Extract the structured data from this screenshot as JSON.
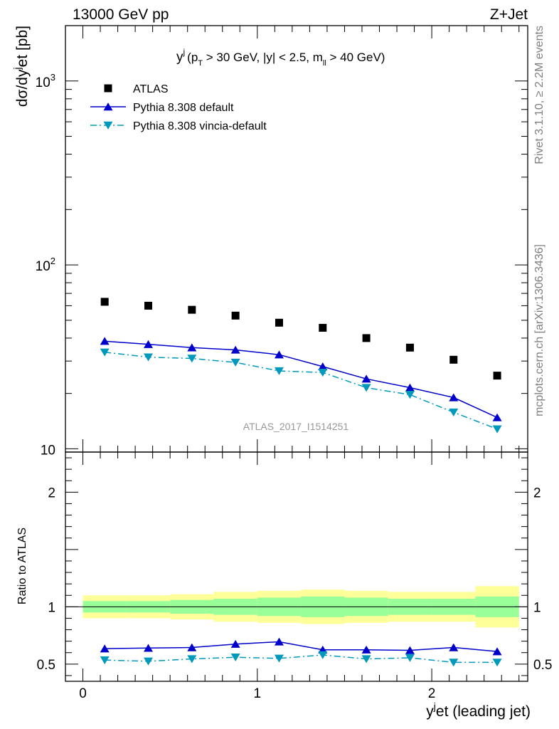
{
  "header": {
    "left": "13000 GeV pp",
    "right": "Z+Jet"
  },
  "cut_label": {
    "main": "y",
    "sup": "j",
    "p1": "(p",
    "sub_t": "T",
    "p2": " > 30 GeV, |y| < 2.5, m",
    "sub_ll": "ll",
    "p3": " > 40 GeV)"
  },
  "side_labels": {
    "top": "Rivet 3.1.10, ≥ 2.2M events",
    "bottom": "mcplots.cern.ch [arXiv:1306.3436]"
  },
  "watermark": "ATLAS_2017_I1514251",
  "colors": {
    "data": "#000000",
    "default": "#0000cc",
    "vincia": "#0099bb",
    "band_inner": "#99ff99",
    "band_outer": "#ffff99"
  },
  "chart_data": [
    {
      "type": "scatter",
      "panel": "main",
      "ylabel": {
        "a": "dσ/dy",
        "sup": "j",
        "b": "et [pb]"
      },
      "yscale": "log",
      "ylim": [
        9.6,
        2000
      ],
      "xlim": [
        -0.1,
        2.55
      ],
      "y_ticks": [
        {
          "label": "10",
          "value": 10
        },
        {
          "label": "10",
          "sup": "2",
          "value": 100
        },
        {
          "label": "10",
          "sup": "3",
          "value": 1000
        }
      ],
      "legend_position": "top-left",
      "x": [
        0.125,
        0.375,
        0.625,
        0.875,
        1.125,
        1.375,
        1.625,
        1.875,
        2.125,
        2.375
      ],
      "series": [
        {
          "name": "ATLAS",
          "values": [
            63,
            60,
            57,
            53,
            48.5,
            45.5,
            40,
            35.5,
            30.5,
            25
          ]
        },
        {
          "name": "Pythia 8.308 default",
          "values": [
            38.5,
            37,
            35.5,
            34.5,
            32.5,
            28,
            24,
            21.5,
            19,
            14.8
          ]
        },
        {
          "name": "Pythia 8.308 vincia-default",
          "values": [
            33.5,
            31.5,
            31,
            29.5,
            26.5,
            26,
            21.5,
            19.7,
            15.8,
            12.8
          ]
        }
      ]
    },
    {
      "type": "line",
      "panel": "ratio",
      "ylabel": "Ratio to ATLAS",
      "ylim": [
        0.35,
        2.35
      ],
      "xlim": [
        -0.1,
        2.55
      ],
      "y_ticks": [
        {
          "label": "0.5",
          "value": 0.5
        },
        {
          "label": "1",
          "value": 1
        },
        {
          "label": "2",
          "value": 2
        }
      ],
      "x_ticks": [
        {
          "label": "0",
          "value": 0
        },
        {
          "label": "1",
          "value": 1
        },
        {
          "label": "2",
          "value": 2
        }
      ],
      "xlabel": {
        "a": "y",
        "sup": "j",
        "b": "et (leading jet)"
      },
      "x": [
        0.125,
        0.375,
        0.625,
        0.875,
        1.125,
        1.375,
        1.625,
        1.875,
        2.125,
        2.375
      ],
      "bands": {
        "edges": [
          0,
          0.25,
          0.5,
          0.75,
          1.0,
          1.25,
          1.5,
          1.75,
          2.0,
          2.25,
          2.5
        ],
        "inner_lo": [
          0.95,
          0.95,
          0.94,
          0.93,
          0.92,
          0.91,
          0.92,
          0.93,
          0.93,
          0.91
        ],
        "inner_hi": [
          1.05,
          1.05,
          1.06,
          1.07,
          1.08,
          1.09,
          1.08,
          1.07,
          1.07,
          1.09
        ],
        "outer_lo": [
          0.9,
          0.9,
          0.89,
          0.87,
          0.86,
          0.85,
          0.86,
          0.87,
          0.87,
          0.82
        ],
        "outer_hi": [
          1.1,
          1.1,
          1.11,
          1.13,
          1.14,
          1.15,
          1.14,
          1.13,
          1.13,
          1.18
        ]
      },
      "series": [
        {
          "name": "Pythia 8.308 default",
          "values": [
            0.635,
            0.64,
            0.645,
            0.675,
            0.695,
            0.625,
            0.625,
            0.62,
            0.645,
            0.61
          ],
          "errors": [
            0.008,
            0.008,
            0.01,
            0.012,
            0.014,
            0.017,
            0.018,
            0.02,
            0.022,
            0.024
          ]
        },
        {
          "name": "Pythia 8.308 vincia-default",
          "values": [
            0.535,
            0.525,
            0.545,
            0.56,
            0.55,
            0.58,
            0.545,
            0.555,
            0.515,
            0.515
          ],
          "errors": [
            0.008,
            0.008,
            0.01,
            0.012,
            0.014,
            0.017,
            0.018,
            0.02,
            0.022,
            0.024
          ]
        }
      ]
    }
  ]
}
